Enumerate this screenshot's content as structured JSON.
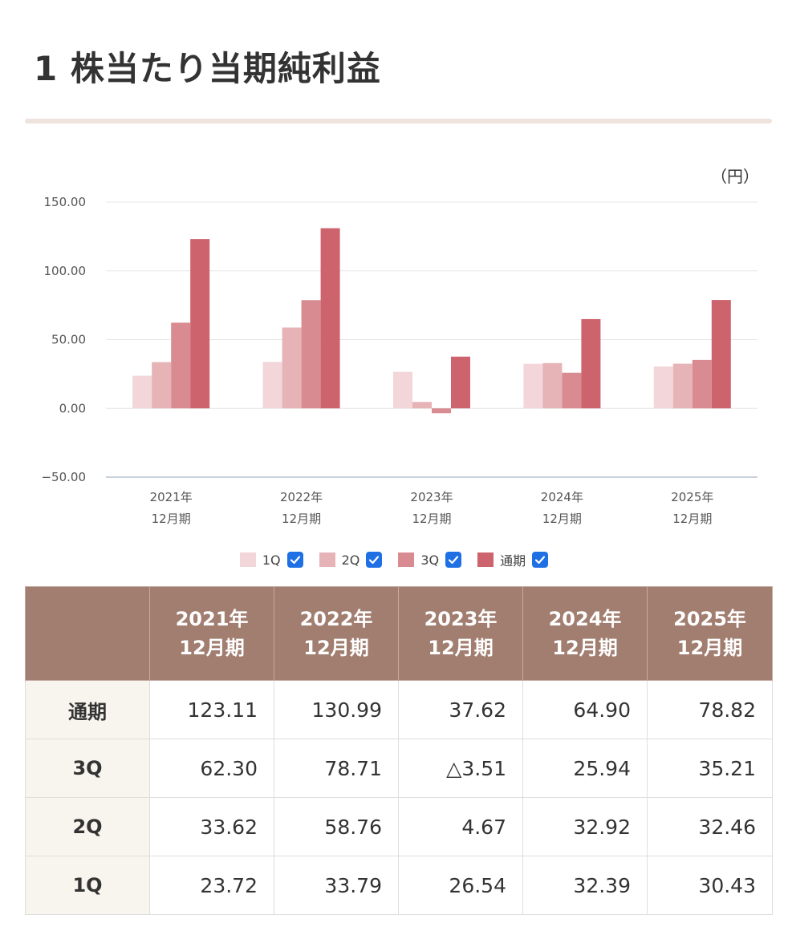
{
  "title": "1 株当たり当期純利益",
  "unit": "（円）",
  "colors": {
    "1Q": "#f2d6d9",
    "2Q": "#e6b3b7",
    "3Q": "#d98b92",
    "通期": "#cd636d",
    "header": "#a27e71",
    "rowhead": "#f8f5ee",
    "check": "#1f6fe5"
  },
  "chart_data": {
    "type": "bar",
    "categories": [
      [
        "2021年",
        "12月期"
      ],
      [
        "2022年",
        "12月期"
      ],
      [
        "2023年",
        "12月期"
      ],
      [
        "2024年",
        "12月期"
      ],
      [
        "2025年",
        "12月期"
      ]
    ],
    "series": [
      {
        "name": "1Q",
        "values": [
          23.72,
          33.79,
          26.54,
          32.39,
          30.43
        ]
      },
      {
        "name": "2Q",
        "values": [
          33.62,
          58.76,
          4.67,
          32.92,
          32.46
        ]
      },
      {
        "name": "3Q",
        "values": [
          62.3,
          78.71,
          -3.51,
          25.94,
          35.21
        ]
      },
      {
        "name": "通期",
        "values": [
          123.11,
          130.99,
          37.62,
          64.9,
          78.82
        ]
      }
    ],
    "ylim": [
      -50,
      150
    ],
    "yticks": [
      "150.00",
      "100.00",
      "50.00",
      "0.00",
      "−50.00"
    ],
    "ytick_values": [
      150,
      100,
      50,
      0,
      -50
    ],
    "grid": true,
    "legend": "bottom"
  },
  "legend": [
    {
      "label": "1Q",
      "color": "#f2d6d9",
      "checked": true
    },
    {
      "label": "2Q",
      "color": "#e6b3b7",
      "checked": true
    },
    {
      "label": "3Q",
      "color": "#d98b92",
      "checked": true
    },
    {
      "label": "通期",
      "color": "#cd636d",
      "checked": true
    }
  ],
  "table": {
    "headers": [
      [
        "2021年",
        "12月期"
      ],
      [
        "2022年",
        "12月期"
      ],
      [
        "2023年",
        "12月期"
      ],
      [
        "2024年",
        "12月期"
      ],
      [
        "2025年",
        "12月期"
      ]
    ],
    "rows": [
      {
        "label": "通期",
        "values": [
          "123.11",
          "130.99",
          "37.62",
          "64.90",
          "78.82"
        ]
      },
      {
        "label": "3Q",
        "values": [
          "62.30",
          "78.71",
          "△3.51",
          "25.94",
          "35.21"
        ]
      },
      {
        "label": "2Q",
        "values": [
          "33.62",
          "58.76",
          "4.67",
          "32.92",
          "32.46"
        ]
      },
      {
        "label": "1Q",
        "values": [
          "23.72",
          "33.79",
          "26.54",
          "32.39",
          "30.43"
        ]
      }
    ]
  }
}
